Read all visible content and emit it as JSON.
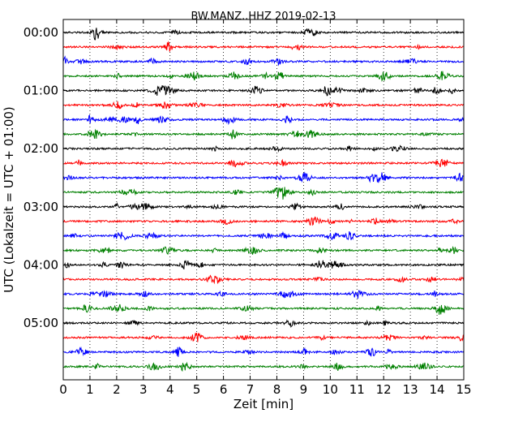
{
  "chart_data": {
    "type": "line",
    "title": "BW.MANZ..HHZ 2019-02-13",
    "xlabel": "Zeit  [min]",
    "ylabel": "UTC (Lokalzeit = UTC + 01:00)",
    "xlim": [
      0,
      15
    ],
    "x_ticks": [
      "0",
      "1",
      "2",
      "3",
      "4",
      "5",
      "6",
      "7",
      "8",
      "9",
      "10",
      "11",
      "12",
      "13",
      "14",
      "15"
    ],
    "y_ticks": [
      "00:00",
      "01:00",
      "02:00",
      "03:00",
      "04:00",
      "05:00"
    ],
    "grid": "vertical-dotted",
    "trace_colors": [
      "#000000",
      "#ff0000",
      "#0000ff",
      "#008000"
    ],
    "traces_per_hour": 4,
    "trace_count": 24,
    "trace_minutes": 15
  }
}
